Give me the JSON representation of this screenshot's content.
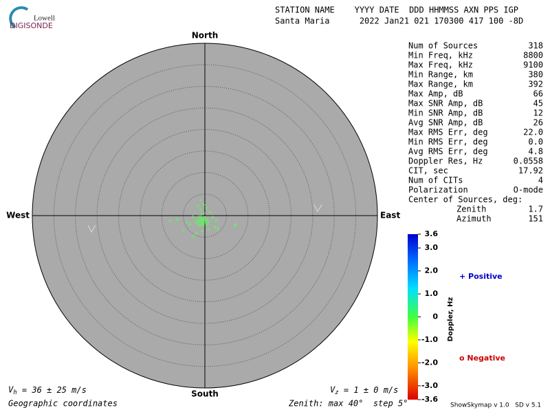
{
  "logo": {
    "top": "Lowell",
    "bottom": "DIGISONDE"
  },
  "header": {
    "labels": "STATION NAME    YYYY DATE  DDD HHMMSS AXN PPS IGP",
    "values": "Santa Maria      2022 Jan21 021 170300 417 100 -8D"
  },
  "compass": {
    "north": "North",
    "south": "South",
    "west": "West",
    "east": "East"
  },
  "skymap": {
    "zenith_max": 40,
    "ring_step": 5,
    "point_color": "#66ee66",
    "points": [
      [
        -0.8,
        -1.4
      ],
      [
        -0.5,
        -1.7
      ],
      [
        -1.1,
        -1.2
      ],
      [
        -0.3,
        -1.0
      ],
      [
        -0.9,
        -2.0
      ],
      [
        -0.2,
        -1.5
      ],
      [
        -1.3,
        -1.6
      ],
      [
        -0.6,
        -0.8
      ],
      [
        0.1,
        -1.2
      ],
      [
        -1.0,
        -0.6
      ],
      [
        -1.6,
        -1.1
      ],
      [
        -0.4,
        -2.2
      ],
      [
        0.3,
        -1.8
      ],
      [
        -1.2,
        -2.3
      ],
      [
        -0.7,
        -1.1
      ],
      [
        0.0,
        -0.5
      ],
      [
        -1.8,
        -1.9
      ],
      [
        0.5,
        -1.0
      ],
      [
        -0.9,
        0.2
      ],
      [
        -1.4,
        -0.3
      ],
      [
        0.6,
        -2.1
      ],
      [
        -2.2,
        -1.4
      ],
      [
        0.9,
        -1.5
      ],
      [
        -0.3,
        0.6
      ],
      [
        -1.0,
        1.4
      ],
      [
        -0.2,
        2.5
      ],
      [
        -1.0,
        3.5
      ],
      [
        0.4,
        1.8
      ],
      [
        -8.0,
        -1.2
      ],
      [
        -6.4,
        -0.9
      ],
      [
        7.2,
        -2.0
      ],
      [
        7.0,
        -2.4
      ],
      [
        -5.0,
        -3.4
      ],
      [
        -2.6,
        -4.8
      ],
      [
        -2.0,
        -4.2
      ],
      [
        3.0,
        -3.0
      ],
      [
        2.4,
        -2.6
      ],
      [
        -3.4,
        -2.0
      ],
      [
        -4.2,
        -1.6
      ],
      [
        1.8,
        -0.4
      ],
      [
        2.6,
        -1.2
      ],
      [
        -2.8,
        -0.2
      ],
      [
        1.2,
        0.8
      ],
      [
        -1.6,
        2.2
      ],
      [
        0.8,
        -3.2
      ],
      [
        -0.6,
        -3.6
      ]
    ]
  },
  "stats": [
    [
      "Num of Sources",
      "318"
    ],
    [
      "Min Freq, kHz",
      "8800"
    ],
    [
      "Max Freq, kHz",
      "9100"
    ],
    [
      "Min Range, km",
      "380"
    ],
    [
      "Max Range, km",
      "392"
    ],
    [
      "Max Amp, dB",
      "66"
    ],
    [
      "Max SNR Amp, dB",
      "45"
    ],
    [
      "Min SNR Amp, dB",
      "12"
    ],
    [
      "Avg SNR Amp, dB",
      "26"
    ],
    [
      "Max RMS Err, deg",
      "22.0"
    ],
    [
      "Min RMS Err, deg",
      "0.0"
    ],
    [
      "Avg RMS Err, deg",
      "4.8"
    ],
    [
      "Doppler Res, Hz",
      "0.0558"
    ],
    [
      "CIT, sec",
      "17.92"
    ],
    [
      "Num of CITs",
      "4"
    ],
    [
      "Polarization",
      "O-mode"
    ],
    [
      "Center of Sources, deg:",
      ""
    ],
    [
      "Zenith",
      "1.7"
    ],
    [
      "Azimuth",
      "151"
    ]
  ],
  "colorbar": {
    "title": "Doppler, Hz",
    "range": [
      -3.6,
      3.6
    ],
    "ticks": [
      {
        "value": 3.6,
        "label": "3.6"
      },
      {
        "value": 3,
        "label": "3.0"
      },
      {
        "value": 2,
        "label": "2.0"
      },
      {
        "value": 1,
        "label": "1.0"
      },
      0,
      {
        "value": -1,
        "label": "-1.0"
      },
      {
        "value": -2,
        "label": "-2.0"
      },
      {
        "value": -3,
        "label": "-3.0"
      },
      {
        "value": -3.6,
        "label": "-3.6"
      }
    ]
  },
  "legend": {
    "positive": "+ Positive",
    "negative": "o Negative"
  },
  "footer": {
    "vh": "36 ± 25 m/s",
    "vz": "1 ± 0 m/s",
    "coords": "Geographic coordinates",
    "zenith": "Zenith: max 40°  step 5°",
    "version": "ShowSkymap v 1.0   SD v 5.1"
  }
}
